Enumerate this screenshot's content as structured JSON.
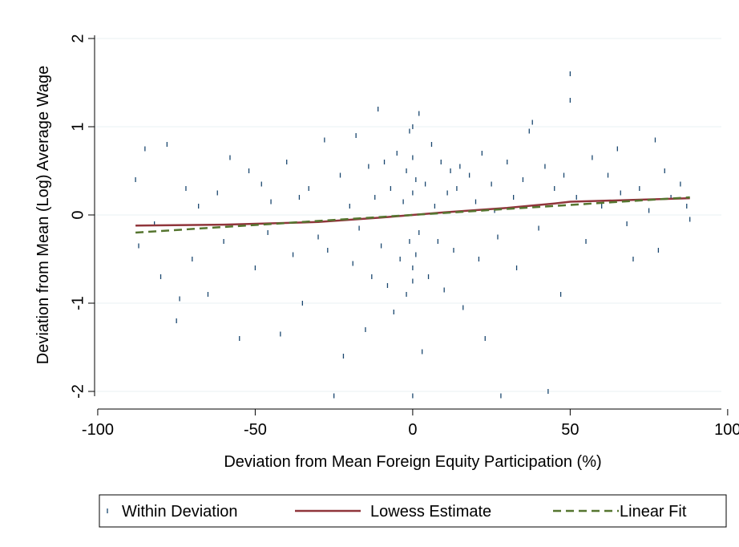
{
  "chart_data": {
    "type": "scatter",
    "x_label": "Deviation from Mean Foreign Equity Participation (%)",
    "y_label": "Deviation from Mean (Log) Average Wage",
    "xlim": [
      -101,
      98
    ],
    "ylim": [
      -2.2,
      2.2
    ],
    "xticks": [
      -100,
      -50,
      0,
      50,
      100
    ],
    "yticks": [
      -2,
      -1,
      0,
      1,
      2
    ],
    "grid": true,
    "series": [
      {
        "name": "Within Deviation",
        "type": "scatter",
        "color": "#1a476f",
        "x": [
          -88,
          -87,
          -85,
          -82,
          -80,
          -78,
          -75,
          -74,
          -72,
          -70,
          -68,
          -65,
          -62,
          -60,
          -58,
          -55,
          -52,
          -50,
          -48,
          -46,
          -45,
          -42,
          -40,
          -38,
          -36,
          -35,
          -33,
          -30,
          -28,
          -27,
          -25,
          -23,
          -22,
          -20,
          -19,
          -18,
          -17,
          -15,
          -14,
          -13,
          -12,
          -11,
          -10,
          -9,
          -8,
          -7,
          -6,
          -5,
          -4,
          -3,
          -2,
          -2,
          -1,
          -1,
          0,
          0,
          0,
          0,
          0,
          0,
          1,
          1,
          2,
          2,
          3,
          4,
          5,
          6,
          7,
          8,
          9,
          10,
          11,
          12,
          13,
          14,
          15,
          16,
          18,
          20,
          21,
          22,
          23,
          25,
          26,
          27,
          28,
          30,
          32,
          33,
          35,
          37,
          38,
          40,
          42,
          43,
          45,
          47,
          48,
          50,
          50,
          52,
          55,
          57,
          60,
          62,
          65,
          66,
          68,
          70,
          72,
          75,
          77,
          78,
          80,
          82,
          85,
          87,
          88
        ],
        "values": [
          0.4,
          -0.35,
          0.75,
          -0.1,
          -0.7,
          0.8,
          -1.2,
          -0.95,
          0.3,
          -0.5,
          0.1,
          -0.9,
          0.25,
          -0.3,
          0.65,
          -1.4,
          0.5,
          -0.6,
          0.35,
          -0.2,
          0.15,
          -1.35,
          0.6,
          -0.45,
          0.2,
          -1.0,
          0.3,
          -0.25,
          0.85,
          -0.4,
          -2.05,
          0.45,
          -1.6,
          0.1,
          -0.55,
          0.9,
          -0.15,
          -1.3,
          0.55,
          -0.7,
          0.2,
          1.2,
          -0.35,
          0.6,
          -0.8,
          0.3,
          -1.1,
          0.7,
          -0.5,
          0.15,
          -0.9,
          0.5,
          0.95,
          -0.3,
          1.0,
          -0.6,
          0.65,
          -0.75,
          -2.05,
          0.25,
          0.4,
          -0.45,
          1.15,
          -0.2,
          -1.55,
          0.35,
          -0.7,
          0.8,
          0.1,
          -0.3,
          0.6,
          -0.85,
          0.25,
          0.5,
          -0.4,
          0.3,
          0.55,
          -1.05,
          0.45,
          0.15,
          -0.5,
          0.7,
          -1.4,
          0.35,
          0.05,
          -0.25,
          -2.05,
          0.6,
          0.2,
          -0.6,
          0.4,
          0.95,
          1.05,
          -0.15,
          0.55,
          -2.0,
          0.3,
          -0.9,
          0.45,
          1.6,
          1.3,
          0.2,
          -0.3,
          0.65,
          0.1,
          0.45,
          0.75,
          0.25,
          -0.1,
          -0.5,
          0.3,
          0.05,
          0.85,
          -0.4,
          0.5,
          0.2,
          0.35,
          0.1,
          -0.05
        ]
      },
      {
        "name": "Lowess Estimate",
        "type": "line",
        "color": "#90353b",
        "dashed": false,
        "x": [
          -88,
          -60,
          -30,
          -10,
          0,
          10,
          30,
          45,
          50,
          70,
          88
        ],
        "values": [
          -0.12,
          -0.11,
          -0.08,
          -0.03,
          0,
          0.03,
          0.08,
          0.13,
          0.15,
          0.17,
          0.19
        ]
      },
      {
        "name": "Linear Fit",
        "type": "line",
        "color": "#55752f",
        "dashed": true,
        "x": [
          -88,
          88
        ],
        "values": [
          -0.2,
          0.2
        ]
      }
    ]
  }
}
